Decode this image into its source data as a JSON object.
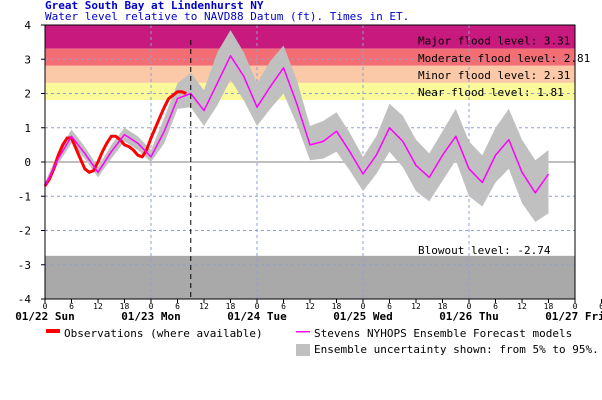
{
  "chart_data": {
    "type": "line",
    "title": "Great South Bay at Lindenhurst NY",
    "subtitle": "Water level relative to NAVD88 Datum (ft). Times in ET.",
    "xlabel": "",
    "ylabel": "",
    "ylim": [
      -4,
      4
    ],
    "yticks": [
      4,
      3,
      2,
      1,
      0,
      -1,
      -2,
      -3,
      -4
    ],
    "xlim_hours": [
      0,
      120
    ],
    "x_minor_tick_labels": [
      "0",
      "6",
      "12",
      "18",
      "0",
      "6",
      "12",
      "18",
      "0",
      "6",
      "12",
      "18",
      "0",
      "6",
      "12",
      "18",
      "0",
      "6",
      "12",
      "18",
      "0",
      "6",
      "12",
      "18"
    ],
    "day_labels": [
      "01/22 Sun",
      "01/23 Mon",
      "01/24 Tue",
      "01/25 Wed",
      "01/26 Thu",
      "01/27 Fri"
    ],
    "grid": true,
    "now_hours": 33,
    "thresholds": [
      {
        "label": "Major flood level: 3.31",
        "value": 3.31,
        "color": "#c8197f"
      },
      {
        "label": "Moderate flood level: 2.81",
        "value": 2.81,
        "color": "#f26d74"
      },
      {
        "label": "Minor flood level: 2.31",
        "value": 2.31,
        "color": "#fbc9a7"
      },
      {
        "label": "Near flood level: 1.81",
        "value": 1.81,
        "color": "#fbfa9b"
      },
      {
        "label": "Blowout level: -2.74",
        "value": -2.74,
        "color": "#a9a9a9"
      }
    ],
    "series": [
      {
        "name": "Observations (where available)",
        "color": "#ff0000",
        "x": [
          0,
          1,
          2,
          3,
          4,
          5,
          6,
          7,
          8,
          9,
          10,
          11,
          12,
          13,
          14,
          15,
          16,
          17,
          18,
          19,
          20,
          21,
          22,
          23,
          24,
          25,
          26,
          27,
          28,
          29,
          30,
          31,
          32
        ],
        "y": [
          -0.7,
          -0.5,
          -0.2,
          0.2,
          0.5,
          0.7,
          0.7,
          0.4,
          0.1,
          -0.2,
          -0.3,
          -0.25,
          0.0,
          0.3,
          0.55,
          0.75,
          0.75,
          0.65,
          0.5,
          0.45,
          0.35,
          0.2,
          0.15,
          0.35,
          0.7,
          1.0,
          1.3,
          1.6,
          1.85,
          1.95,
          2.05,
          2.05,
          2.0
        ]
      },
      {
        "name": "Stevens NYHOPS Ensemble Forecast models",
        "color": "#ff00ff",
        "x": [
          0,
          3,
          6,
          9,
          12,
          15,
          18,
          21,
          24,
          27,
          30,
          33,
          36,
          39,
          42,
          45,
          48,
          51,
          54,
          57,
          60,
          63,
          66,
          69,
          72,
          75,
          78,
          81,
          84,
          87,
          90,
          93,
          96,
          99,
          102,
          105,
          108,
          111,
          114
        ],
        "y": [
          -0.7,
          0.1,
          0.75,
          0.25,
          -0.3,
          0.3,
          0.8,
          0.55,
          0.15,
          0.9,
          1.85,
          2.0,
          1.5,
          2.3,
          3.1,
          2.5,
          1.6,
          2.2,
          2.75,
          1.7,
          0.5,
          0.6,
          0.9,
          0.3,
          -0.35,
          0.2,
          1.0,
          0.6,
          -0.1,
          -0.45,
          0.2,
          0.75,
          -0.2,
          -0.6,
          0.2,
          0.65,
          -0.3,
          -0.9,
          -0.35
        ]
      }
    ],
    "band": {
      "name": "Ensemble uncertainty shown: from 5% to 95%.",
      "color": "#c0c0c0",
      "x": [
        0,
        3,
        6,
        9,
        12,
        15,
        18,
        21,
        24,
        27,
        30,
        33,
        36,
        39,
        42,
        45,
        48,
        51,
        54,
        57,
        60,
        63,
        66,
        69,
        72,
        75,
        78,
        81,
        84,
        87,
        90,
        93,
        96,
        99,
        102,
        105,
        108,
        111,
        114
      ],
      "lower": [
        -0.75,
        -0.05,
        0.55,
        0.1,
        -0.45,
        0.1,
        0.6,
        0.35,
        0.0,
        0.55,
        1.55,
        1.6,
        1.05,
        1.65,
        2.4,
        1.8,
        1.05,
        1.55,
        2.0,
        1.1,
        0.05,
        0.1,
        0.3,
        -0.25,
        -0.85,
        -0.35,
        0.3,
        -0.15,
        -0.85,
        -1.15,
        -0.55,
        0.05,
        -1.0,
        -1.3,
        -0.6,
        -0.2,
        -1.2,
        -1.75,
        -1.5
      ],
      "upper": [
        -0.6,
        0.3,
        0.95,
        0.45,
        -0.15,
        0.5,
        1.0,
        0.75,
        0.35,
        1.3,
        2.3,
        2.6,
        2.1,
        3.2,
        3.85,
        3.2,
        2.3,
        2.95,
        3.4,
        2.4,
        1.05,
        1.2,
        1.45,
        0.85,
        0.15,
        0.75,
        1.7,
        1.35,
        0.65,
        0.25,
        0.9,
        1.55,
        0.6,
        0.2,
        1.0,
        1.55,
        0.65,
        0.05,
        0.35
      ]
    }
  }
}
